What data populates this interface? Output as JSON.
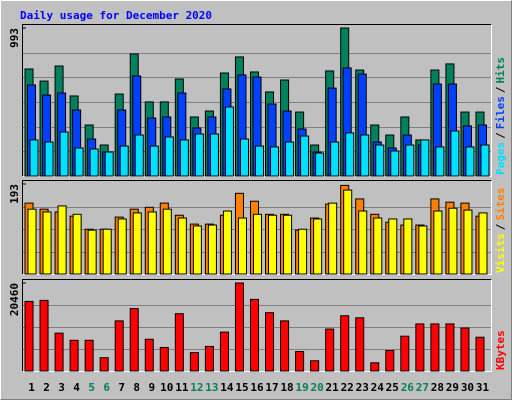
{
  "chart_data": [
    {
      "type": "bar",
      "title": "Daily usage for December 2020",
      "title_color": "#0000ff",
      "ylim": [
        0,
        993
      ],
      "yticks": [
        993
      ],
      "legend_separator": "/",
      "series": [
        {
          "name": "Hits",
          "color": "#00805c",
          "values": [
            718,
            637,
            738,
            537,
            342,
            208,
            550,
            819,
            497,
            497,
            651,
            396,
            436,
            691,
            799,
            698,
            564,
            644,
            429,
            208,
            705,
            993,
            711,
            342,
            275,
            396,
            242,
            711,
            752,
            429,
            429
          ]
        },
        {
          "name": "Files",
          "color": "#0040ff",
          "values": [
            611,
            543,
            557,
            443,
            248,
            161,
            443,
            671,
            389,
            396,
            557,
            322,
            396,
            584,
            678,
            664,
            483,
            436,
            315,
            161,
            590,
            725,
            684,
            228,
            188,
            275,
            208,
            617,
            617,
            336,
            342
          ]
        },
        {
          "name": "Pages",
          "color": "#00e0ff",
          "values": [
            242,
            228,
            295,
            188,
            181,
            161,
            201,
            275,
            201,
            262,
            242,
            282,
            282,
            463,
            248,
            201,
            195,
            228,
            268,
            154,
            228,
            289,
            275,
            208,
            168,
            208,
            242,
            195,
            302,
            195,
            208
          ]
        }
      ]
    },
    {
      "type": "bar",
      "ylim": [
        0,
        193
      ],
      "yticks": [
        193
      ],
      "legend_separator": "/",
      "series": [
        {
          "name": "Sites",
          "color": "#ff8000",
          "values": [
            152,
            139,
            133,
            124,
            96,
            96,
            122,
            139,
            143,
            152,
            126,
            107,
            107,
            126,
            173,
            156,
            128,
            128,
            94,
            120,
            150,
            190,
            161,
            128,
            111,
            105,
            105,
            161,
            154,
            152,
            124
          ]
        },
        {
          "name": "Visits",
          "color": "#ffff00",
          "values": [
            139,
            133,
            146,
            128,
            94,
            96,
            118,
            131,
            133,
            139,
            120,
            103,
            105,
            135,
            120,
            128,
            126,
            126,
            96,
            118,
            152,
            180,
            135,
            120,
            118,
            118,
            103,
            135,
            141,
            137,
            131
          ]
        }
      ]
    },
    {
      "type": "bar",
      "ylim": [
        0,
        20460
      ],
      "yticks": [
        20460
      ],
      "series": [
        {
          "name": "KBytes",
          "color": "#ff0000",
          "values": [
            16177,
            16415,
            8802,
            7137,
            7137,
            3093,
            11657,
            14512,
            7375,
            5472,
            13322,
            4282,
            5710,
            9040,
            20460,
            16653,
            13560,
            11657,
            4520,
            2379,
            9754,
            12846,
            12371,
            1903,
            4758,
            8089,
            10943,
            10943,
            10943,
            9992,
            7851
          ]
        }
      ],
      "categories": [
        "1",
        "2",
        "3",
        "4",
        "5",
        "6",
        "7",
        "8",
        "9",
        "10",
        "11",
        "12",
        "13",
        "14",
        "15",
        "16",
        "17",
        "18",
        "19",
        "20",
        "21",
        "22",
        "23",
        "24",
        "25",
        "26",
        "27",
        "28",
        "29",
        "30",
        "31"
      ],
      "category_colors": [
        "#000000",
        "#000000",
        "#000000",
        "#000000",
        "#00805c",
        "#00805c",
        "#000000",
        "#000000",
        "#000000",
        "#000000",
        "#000000",
        "#00805c",
        "#00805c",
        "#000000",
        "#000000",
        "#000000",
        "#000000",
        "#000000",
        "#00805c",
        "#00805c",
        "#000000",
        "#000000",
        "#000000",
        "#000000",
        "#000000",
        "#00805c",
        "#00805c",
        "#000000",
        "#000000",
        "#000000",
        "#000000"
      ]
    }
  ]
}
